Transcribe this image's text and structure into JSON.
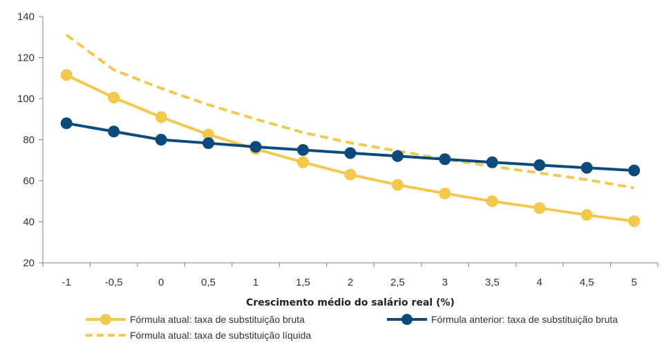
{
  "chart_data": {
    "type": "line",
    "title": "",
    "xlabel": "Crescimento médio do salário real (%)",
    "ylabel": "",
    "categories": [
      "-1",
      "-0,5",
      "0",
      "0,5",
      "1",
      "1,5",
      "2",
      "2,5",
      "3",
      "3,5",
      "4",
      "4,5",
      "5"
    ],
    "yticks": [
      "20",
      "40",
      "60",
      "80",
      "100",
      "120",
      "140"
    ],
    "ylim": [
      20,
      140
    ],
    "grid": false,
    "legend_position": "bottom",
    "series": [
      {
        "name": "Fórmula atual: taxa de substituição bruta",
        "color": "#F2C94C",
        "style": "solid-markers",
        "values": [
          111.5,
          100.5,
          91,
          82.5,
          75.5,
          69,
          63,
          58,
          53.8,
          50,
          46.7,
          43.3,
          40.3
        ]
      },
      {
        "name": "Fórmula anterior: taxa de substituição bruta",
        "color": "#0B4A7D",
        "style": "solid-markers",
        "values": [
          88,
          84,
          80,
          78.3,
          76.5,
          75,
          73.5,
          72,
          70.5,
          69,
          67.6,
          66.3,
          65
        ]
      },
      {
        "name": "Fórmula atual: taxa de substituição líquida",
        "color": "#F2C94C",
        "style": "dashed",
        "values": [
          131,
          114,
          105,
          97,
          90,
          83.5,
          78.5,
          74.5,
          70.5,
          67,
          63.8,
          60.5,
          56.5
        ]
      }
    ]
  }
}
